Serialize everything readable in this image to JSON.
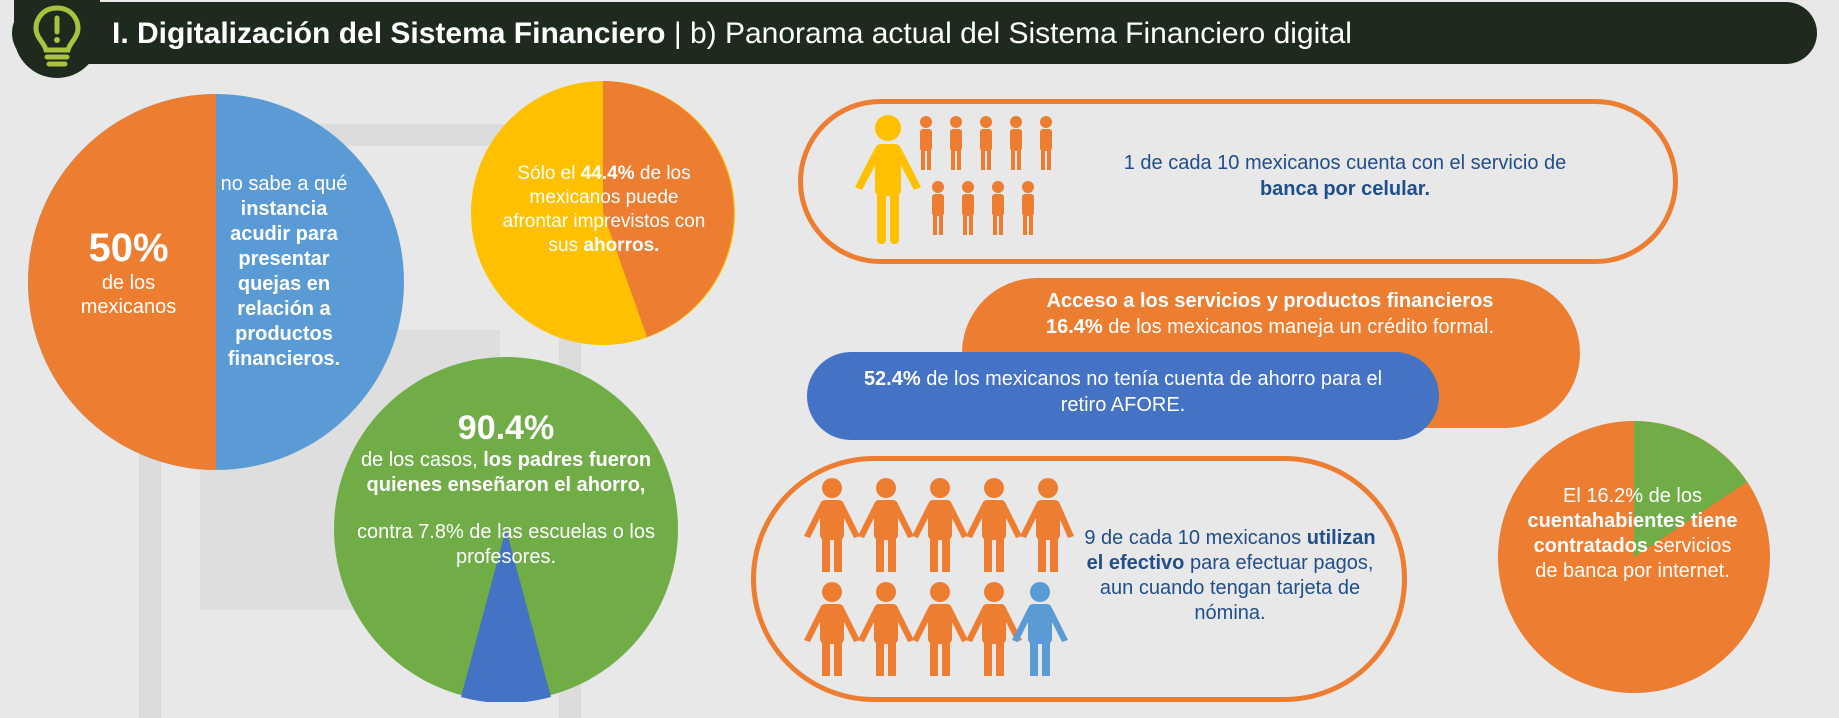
{
  "header": {
    "title_bold": "I. Digitalización del Sistema Financiero",
    "title_sep": " | ",
    "title_rest": "b) Panorama actual del Sistema Financiero digital"
  },
  "pie_50": {
    "percent": "50%",
    "left_label": "de los mexicanos",
    "right_plain": "no sabe a qué",
    "right_bold": "instancia acudir para presentar quejas en relación a productos financieros."
  },
  "pie_44": {
    "pre": "Sólo el ",
    "percent": "44.4%",
    "mid": " de los mexicanos puede afrontar imprevistos con sus ",
    "bold_end": "ahorros.",
    "value": 44.4
  },
  "pie_90": {
    "percent": "90.4%",
    "line1_plain": "de los casos, ",
    "line1_bold": "los padres fueron quienes enseñaron el ahorro,",
    "line2": "contra 7.8% de las escuelas o los profesores.",
    "value": 90.4
  },
  "banca_celular": {
    "plain": "1 de cada 10 mexicanos cuenta con el servicio de",
    "bold": "banca por celular."
  },
  "acceso": {
    "bold_title": "Acceso a los servicios y productos financieros",
    "percent": "16.4%",
    "rest": " de los mexicanos maneja un crédito formal."
  },
  "afore": {
    "percent": "52.4%",
    "rest": " de los mexicanos no tenía cuenta de ahorro para el retiro AFORE."
  },
  "efectivo": {
    "pre": "9 de cada 10 mexicanos ",
    "bold": "utilizan el efectivo",
    "post": " para efectuar pagos, aun cuando tengan tarjeta de nómina."
  },
  "pie_16": {
    "pre": "El 16.2% de los ",
    "bold": "cuentahabientes tiene contratados",
    "post": " servicios de banca por internet.",
    "value": 16.2
  },
  "colors": {
    "orange": "#ed7d31",
    "blue_light": "#5b9bd5",
    "blue": "#4472c4",
    "yellow": "#ffc000",
    "green": "#70ad47",
    "dark": "#1e2a1d",
    "lime": "#a9c23f"
  },
  "icons": [
    "lightbulb-icon",
    "person-icon",
    "people-group-icon"
  ]
}
